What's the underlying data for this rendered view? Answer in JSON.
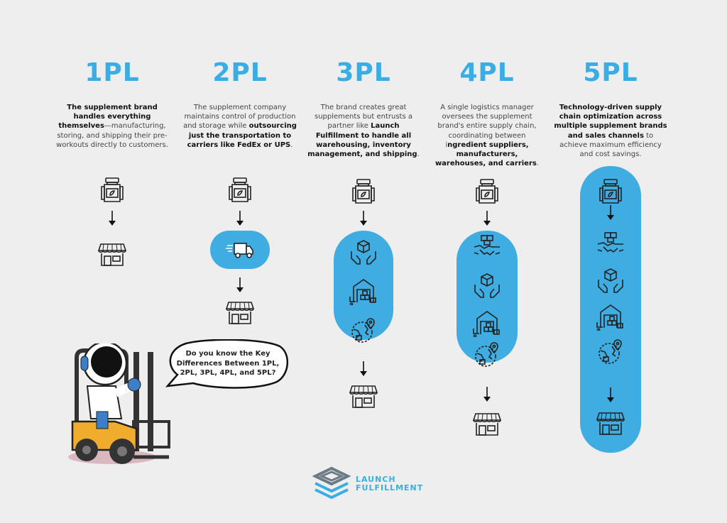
{
  "colors": {
    "accent": "#3aaee4",
    "background": "#eeeeee",
    "text": "#333333"
  },
  "columns": [
    {
      "title": "1PL",
      "description": [
        {
          "text": "The supplement brand handles everything themselves",
          "bold": true
        },
        {
          "text": "—manufacturing, storing, and shipping their pre-workouts directly to customers.",
          "bold": false
        }
      ],
      "flow": [
        "supplement-jar-icon",
        "arrow-down-icon",
        "storefront-icon"
      ]
    },
    {
      "title": "2PL",
      "description": [
        {
          "text": "The supplement company maintains control of production and storage while ",
          "bold": false
        },
        {
          "text": "outsourcing just the transportation to carriers like FedEx or UPS",
          "bold": true
        },
        {
          "text": ".",
          "bold": false
        }
      ],
      "flow": [
        "supplement-jar-icon",
        "arrow-down-icon",
        "delivery-truck-icon",
        "arrow-down-icon",
        "storefront-icon"
      ]
    },
    {
      "title": "3PL",
      "description": [
        {
          "text": "The brand creates great supplements but entrusts a partner like ",
          "bold": false
        },
        {
          "text": "Launch Fulfillment to handle all warehousing, inventory management, and shipping",
          "bold": true
        },
        {
          "text": ".",
          "bold": false
        }
      ],
      "flow": [
        "supplement-jar-icon",
        "arrow-down-icon",
        "hands-box-icon",
        "warehouse-icon",
        "global-shipping-icon",
        "arrow-down-icon",
        "storefront-icon"
      ]
    },
    {
      "title": "4PL",
      "description": [
        {
          "text": "A single logistics manager oversees the supplement brand's entire supply chain, coordinating between i",
          "bold": false
        },
        {
          "text": "ngredient suppliers, manufacturers, warehouses, and carriers",
          "bold": true
        },
        {
          "text": ".",
          "bold": false
        }
      ],
      "flow": [
        "supplement-jar-icon",
        "arrow-down-icon",
        "handshake-icon",
        "hands-box-icon",
        "warehouse-icon",
        "global-shipping-icon",
        "arrow-down-icon",
        "storefront-icon"
      ]
    },
    {
      "title": "5PL",
      "description": [
        {
          "text": "Technology-driven supply chain optimization across multiple supplement brands and sales channels",
          "bold": true
        },
        {
          "text": " to achieve maximum efficiency and cost savings.",
          "bold": false
        }
      ],
      "flow": [
        "supplement-jar-icon",
        "arrow-down-icon",
        "handshake-icon",
        "hands-box-icon",
        "warehouse-icon",
        "global-shipping-icon",
        "arrow-down-icon",
        "storefront-icon"
      ]
    }
  ],
  "speech_bubble": {
    "text": "Do you know the Key Differences Between 1PL, 2PL, 3PL, 4PL, and 5PL?"
  },
  "mascot": {
    "icon": "astronaut-forklift-icon"
  },
  "logo": {
    "line1": "LAUNCH",
    "line2": "FULFILLMENT",
    "icon": "launch-fulfillment-logo-icon"
  }
}
